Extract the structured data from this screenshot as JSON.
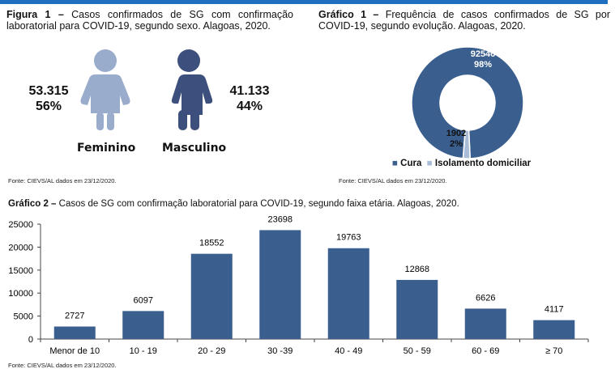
{
  "figura1": {
    "title_bold": "Figura 1 –",
    "title": " Casos confirmados de SG com confirmação laboratorial para COVID-19, segundo sexo. Alagoas, 2020.",
    "feminino": {
      "label": "Feminino",
      "count": "53.315",
      "pct": "56%"
    },
    "masculino": {
      "label": "Masculino",
      "count": "41.133",
      "pct": "44%"
    },
    "source": "Fonte: CIEVS/AL dados em 23/12/2020.",
    "colors": {
      "feminino": "#9aaccc",
      "masculino": "#3d4f7c"
    }
  },
  "grafico1": {
    "title_bold": "Gráfico 1 –",
    "title": " Frequência de casos confirmados de SG por COVID-19, segundo evolução. Alagoas, 2020.",
    "source": "Fonte: CIEVS/AL dados em 23/12/2020."
  },
  "grafico2": {
    "title_bold": "Gráfico 2 –",
    "title": " Casos de SG com confirmação laboratorial para COVID-19, segundo faixa etária. Alagoas, 2020.",
    "source": "Fonte: CIEVS/AL dados em 23/12/2020."
  },
  "chart_data": [
    {
      "type": "pie",
      "donut": true,
      "slices": [
        {
          "name": "Cura",
          "value": 92546,
          "label": "92546",
          "pct": "98%",
          "color": "#3a5f8f"
        },
        {
          "name": "Isolamento domiciliar",
          "value": 1902,
          "label": "1902",
          "pct": "2%",
          "color": "#a9bcd8"
        }
      ],
      "legend": "bottom"
    },
    {
      "type": "bar",
      "categories": [
        "Menor de 10",
        "10 - 19",
        "20 - 29",
        "30 -39",
        "40 - 49",
        "50 - 59",
        "60 - 69",
        "≥ 70"
      ],
      "values": [
        2727,
        6097,
        18552,
        23698,
        19763,
        12868,
        6626,
        4117
      ],
      "ylim": [
        0,
        25000
      ],
      "yticks": [
        "0",
        "5000",
        "10000",
        "15000",
        "20000",
        "25000"
      ],
      "color": "#3a5f8f",
      "grid": false
    }
  ]
}
